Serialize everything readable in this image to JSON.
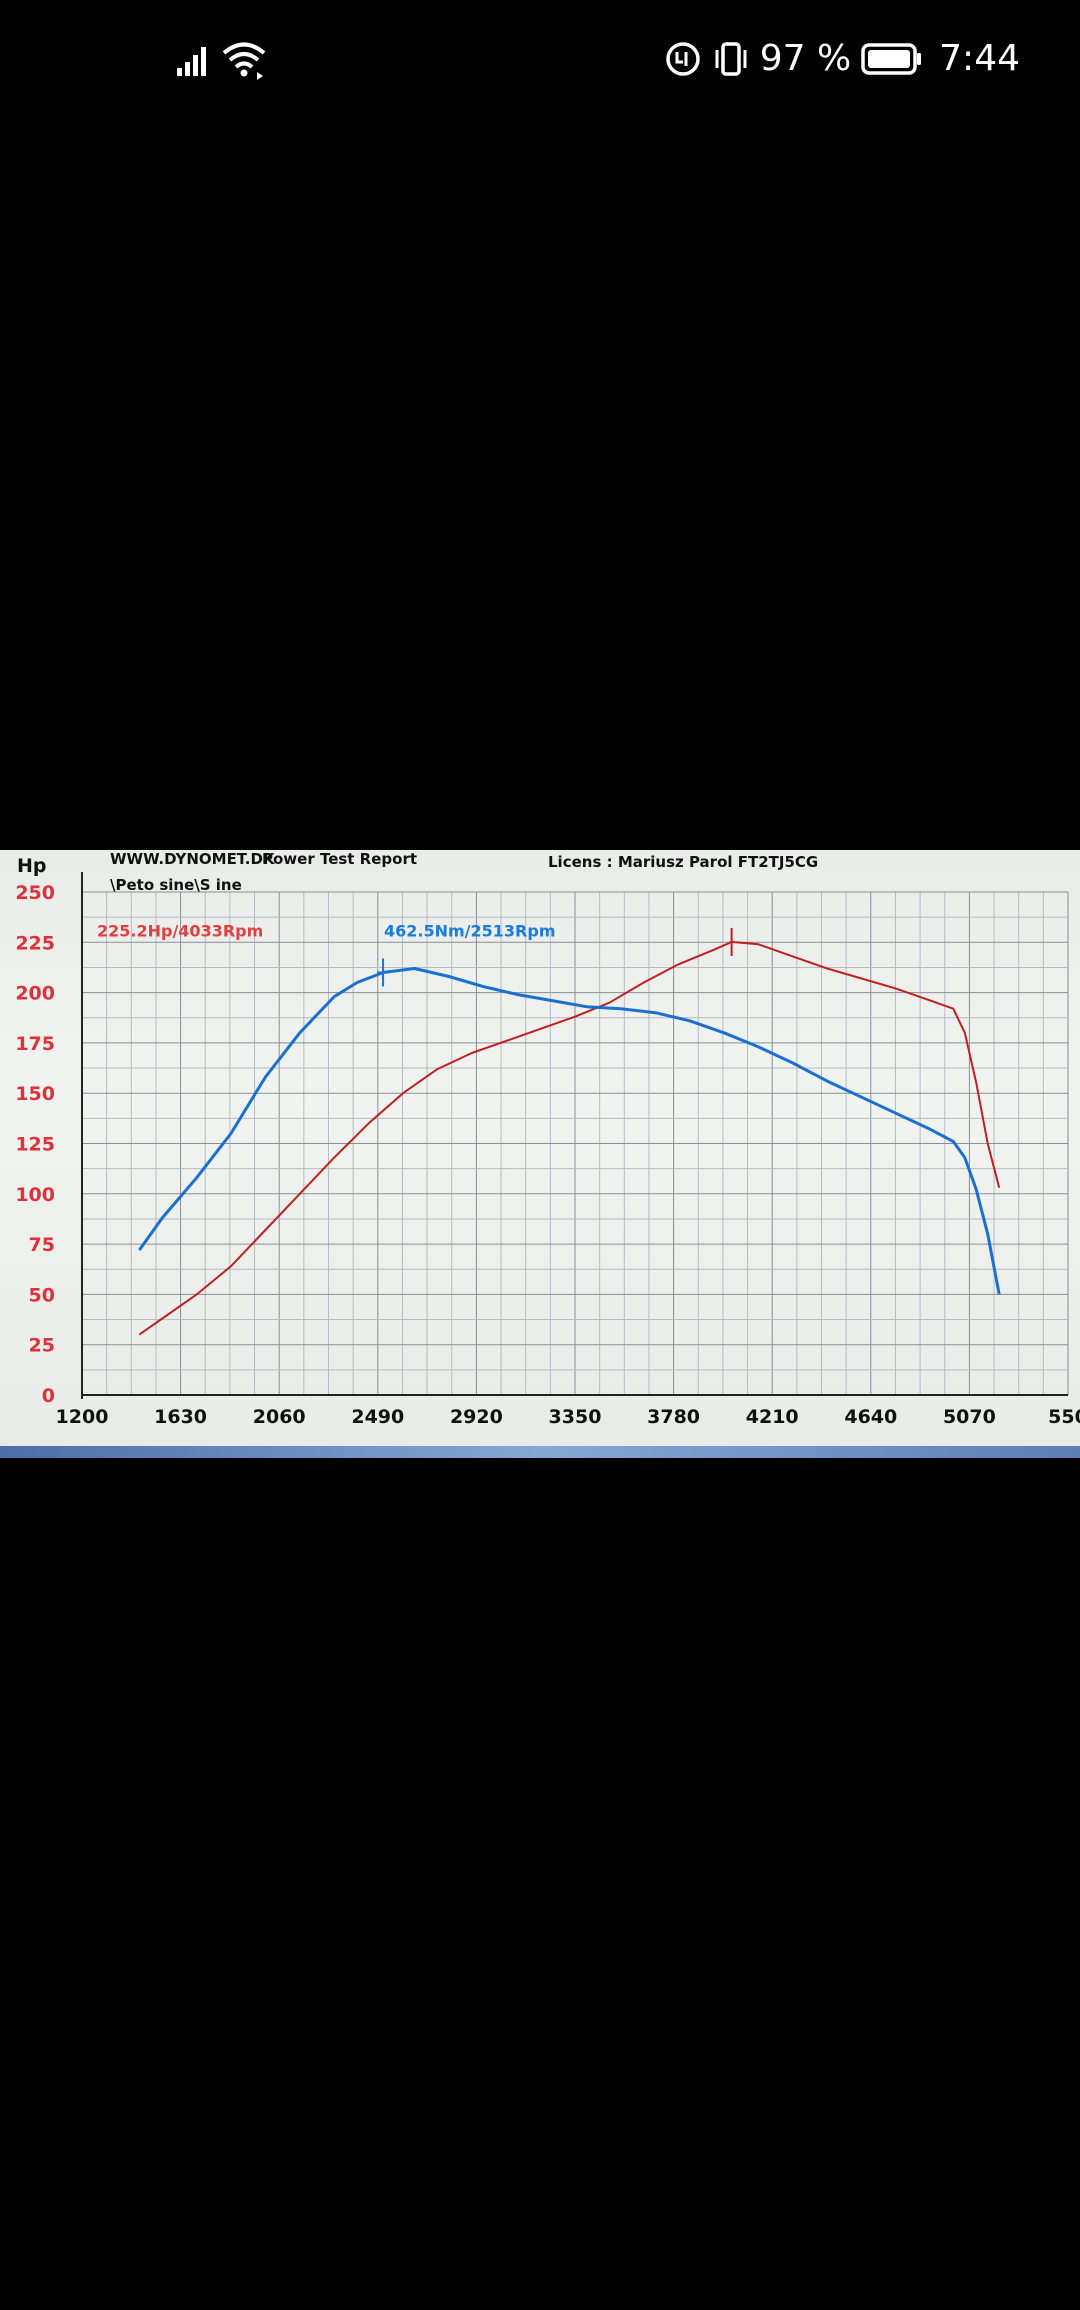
{
  "status_bar": {
    "battery_percent": "97 %",
    "time": "7:44",
    "icons": [
      "signal-icon",
      "wifi-icon",
      "data-saver-icon",
      "vibrate-icon",
      "battery-icon"
    ]
  },
  "report": {
    "website": "WWW.DYNOMET.DK",
    "title": "Power Test Report",
    "path": "\\Peto sine\\S ine",
    "license": "Licens :  Mariusz Parol  FT2TJ5CG"
  },
  "chart_data": {
    "type": "line",
    "ylabel": "Hp",
    "x_ticks": [
      "1200",
      "1630",
      "2060",
      "2490",
      "2920",
      "3350",
      "3780",
      "4210",
      "4640",
      "5070",
      "550"
    ],
    "y_ticks": [
      "0",
      "25",
      "50",
      "75",
      "100",
      "125",
      "150",
      "175",
      "200",
      "225",
      "250"
    ],
    "xlim": [
      1200,
      5500
    ],
    "ylim": [
      0,
      250
    ],
    "grid": true,
    "annotations": [
      {
        "text": "225.2Hp/4033Rpm",
        "color": "#e04040"
      },
      {
        "text": "462.5Nm/2513Rpm",
        "color": "#1a7be0"
      }
    ],
    "series": [
      {
        "color": "#c02020",
        "x": [
          1450,
          1550,
          1700,
          1850,
          2000,
          2150,
          2300,
          2450,
          2600,
          2750,
          2900,
          3050,
          3200,
          3350,
          3500,
          3650,
          3800,
          3950,
          4033,
          4150,
          4300,
          4450,
          4600,
          4750,
          4900,
          5000,
          5050,
          5100,
          5150,
          5200
        ],
        "y": [
          30,
          38,
          50,
          64,
          82,
          100,
          118,
          135,
          150,
          162,
          170,
          176,
          182,
          188,
          195,
          205,
          214,
          221,
          225.2,
          224,
          218,
          212,
          207,
          202,
          196,
          192,
          180,
          155,
          125,
          103
        ]
      },
      {
        "color": "#1a6fd0",
        "x": [
          1450,
          1550,
          1700,
          1850,
          2000,
          2150,
          2300,
          2400,
          2513,
          2650,
          2800,
          2950,
          3100,
          3250,
          3400,
          3550,
          3700,
          3850,
          4000,
          4150,
          4300,
          4450,
          4600,
          4750,
          4900,
          5000,
          5050,
          5100,
          5150,
          5200
        ],
        "y": [
          72,
          88,
          108,
          130,
          158,
          180,
          198,
          205,
          210,
          212,
          208,
          203,
          199,
          196,
          193,
          192,
          190,
          186,
          180,
          173,
          165,
          156,
          148,
          140,
          132,
          126,
          118,
          102,
          80,
          50
        ]
      }
    ]
  }
}
